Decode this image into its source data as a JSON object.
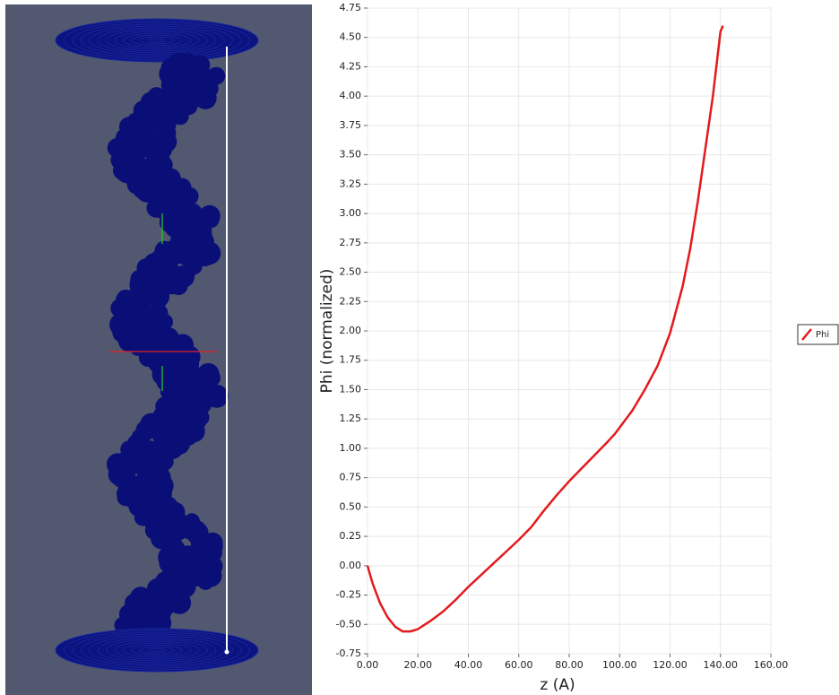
{
  "chart_data": {
    "type": "line",
    "x_label": "z (A)",
    "y_label": "Phi (normalized)",
    "x": [
      0,
      2,
      5,
      8,
      11,
      14,
      17,
      20,
      25,
      30,
      35,
      40,
      45,
      50,
      55,
      60,
      65,
      70,
      75,
      80,
      85,
      90,
      95,
      98,
      105,
      110,
      115,
      120,
      125,
      128,
      131,
      134,
      137,
      140,
      141
    ],
    "series": [
      {
        "name": "Phi",
        "color": "#e31a1c",
        "values": [
          0,
          -0.15,
          -0.32,
          -0.44,
          -0.52,
          -0.56,
          -0.56,
          -0.54,
          -0.47,
          -0.39,
          -0.29,
          -0.18,
          -0.08,
          0.02,
          0.12,
          0.22,
          0.33,
          0.47,
          0.6,
          0.72,
          0.83,
          0.94,
          1.05,
          1.12,
          1.32,
          1.5,
          1.7,
          1.98,
          2.38,
          2.7,
          3.1,
          3.55,
          4.0,
          4.55,
          4.6
        ]
      }
    ],
    "xlim": [
      0,
      160
    ],
    "xticks": [
      {
        "value": 0,
        "label": "0.00"
      },
      {
        "value": 20,
        "label": "20.00"
      },
      {
        "value": 40,
        "label": "40.00"
      },
      {
        "value": 60,
        "label": "60.00"
      },
      {
        "value": 80,
        "label": "80.00"
      },
      {
        "value": 100,
        "label": "100.00"
      },
      {
        "value": 120,
        "label": "120.00"
      },
      {
        "value": 140,
        "label": "140.00"
      },
      {
        "value": 160,
        "label": "160.00"
      }
    ],
    "ylim": [
      -0.75,
      4.75
    ],
    "yticks": [
      -0.75,
      {
        "value": -0.5,
        "label": "-0.50"
      },
      -0.25,
      {
        "value": 0,
        "label": "0.00"
      },
      0.25,
      {
        "value": 0.5,
        "label": "0.50"
      },
      0.75,
      {
        "value": 1,
        "label": "1.00"
      },
      1.25,
      {
        "value": 1.5,
        "label": "1.50"
      },
      1.75,
      {
        "value": 2,
        "label": "2.00"
      },
      2.25,
      {
        "value": 2.5,
        "label": "2.50"
      },
      2.75,
      {
        "value": 3,
        "label": "3.00"
      },
      3.25,
      {
        "value": 3.5,
        "label": "3.50"
      },
      3.75,
      {
        "value": 4,
        "label": "4.00"
      },
      4.25,
      {
        "value": 4.5,
        "label": "4.50"
      },
      4.75
    ],
    "grid": true
  }
}
